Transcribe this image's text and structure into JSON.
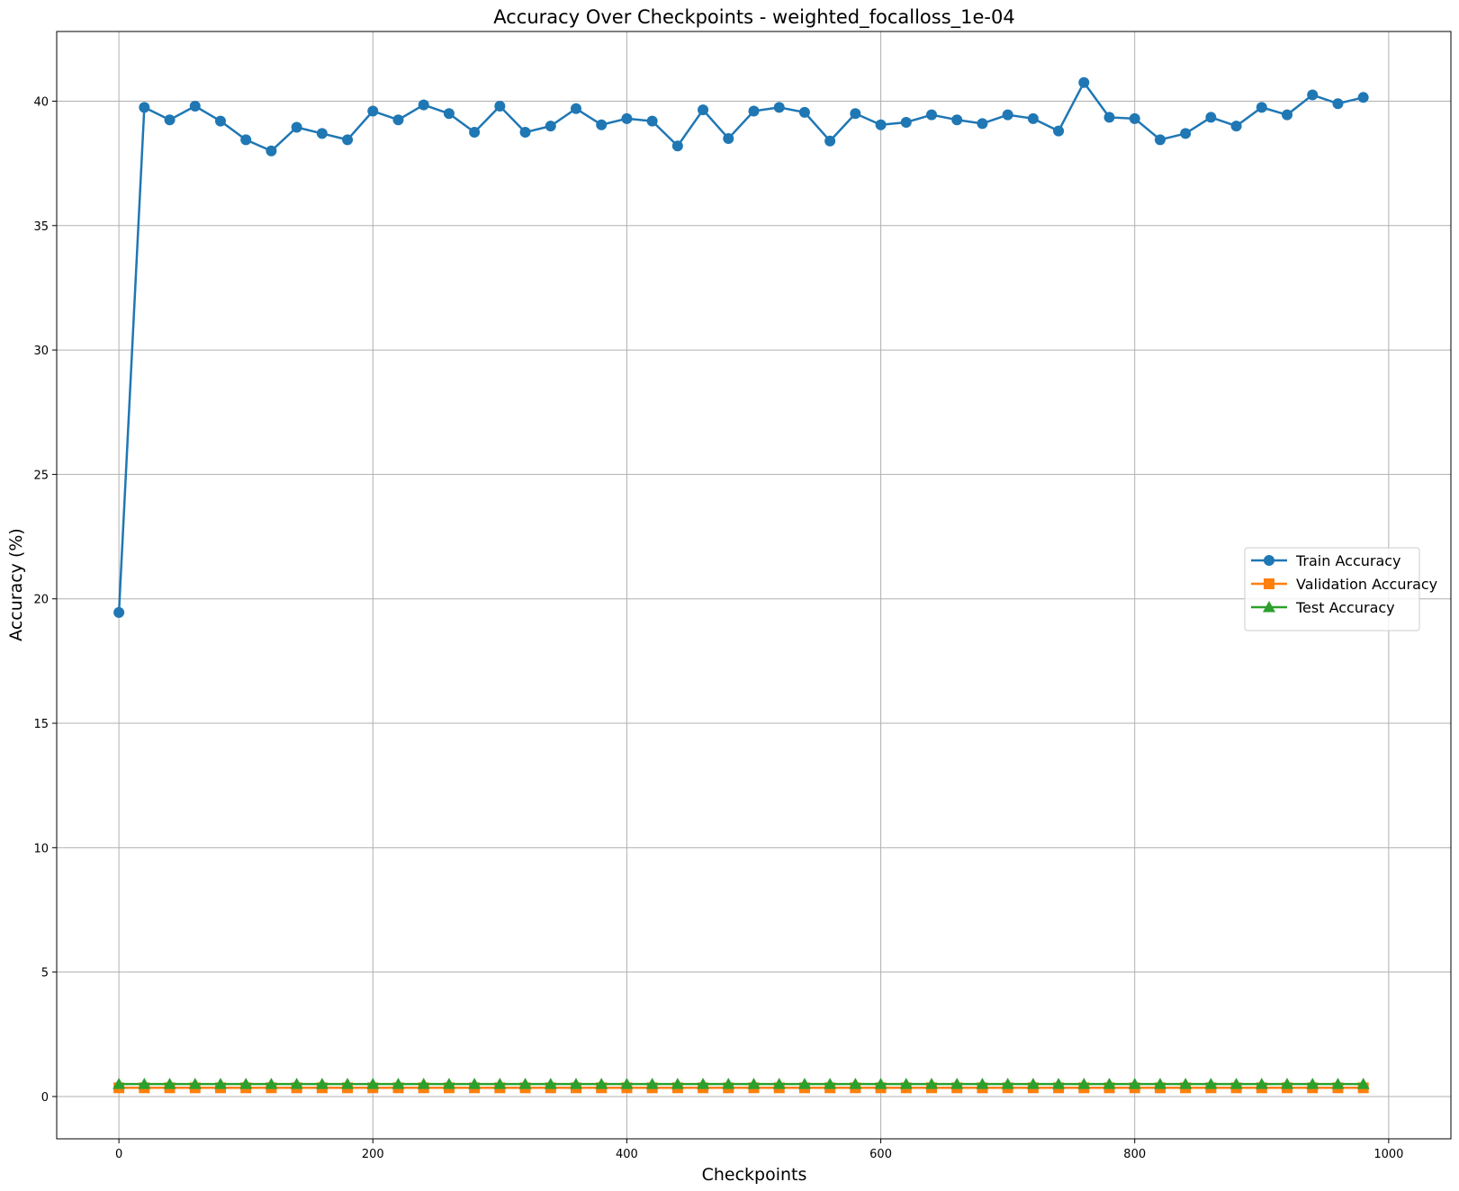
{
  "chart_data": {
    "type": "line",
    "title": "Accuracy Over Checkpoints - weighted_focalloss_1e-04",
    "xlabel": "Checkpoints",
    "ylabel": "Accuracy (%)",
    "xlim": [
      -49,
      1049
    ],
    "ylim": [
      -1.7,
      42.8
    ],
    "x_ticks": [
      0,
      200,
      400,
      600,
      800,
      1000
    ],
    "y_ticks": [
      0,
      5,
      10,
      15,
      20,
      25,
      30,
      35,
      40
    ],
    "grid": true,
    "legend_position": "center-right",
    "x": [
      0,
      20,
      40,
      60,
      80,
      100,
      120,
      140,
      160,
      180,
      200,
      220,
      240,
      260,
      280,
      300,
      320,
      340,
      360,
      380,
      400,
      420,
      440,
      460,
      480,
      500,
      520,
      540,
      560,
      580,
      600,
      620,
      640,
      660,
      680,
      700,
      720,
      740,
      760,
      780,
      800,
      820,
      840,
      860,
      880,
      900,
      920,
      940,
      960,
      980
    ],
    "series": [
      {
        "name": "Train Accuracy",
        "color": "#1f77b4",
        "marker": "circle",
        "values": [
          19.45,
          39.75,
          39.25,
          39.8,
          39.2,
          38.45,
          38.0,
          38.95,
          38.7,
          38.45,
          39.6,
          39.25,
          39.85,
          39.5,
          38.75,
          39.8,
          38.75,
          39.0,
          39.7,
          39.05,
          39.3,
          39.2,
          38.2,
          39.65,
          38.5,
          39.6,
          39.75,
          39.55,
          38.4,
          39.5,
          39.05,
          39.15,
          39.45,
          39.25,
          39.1,
          39.45,
          39.3,
          38.8,
          40.75,
          39.35,
          39.3,
          38.45,
          38.7,
          39.35,
          39.0,
          39.75,
          39.45,
          40.25,
          39.9,
          40.15
        ]
      },
      {
        "name": "Validation Accuracy",
        "color": "#ff7f0e",
        "marker": "square",
        "values": [
          0.35,
          0.35,
          0.35,
          0.35,
          0.35,
          0.35,
          0.35,
          0.35,
          0.35,
          0.35,
          0.35,
          0.35,
          0.35,
          0.35,
          0.35,
          0.35,
          0.35,
          0.35,
          0.35,
          0.35,
          0.35,
          0.35,
          0.35,
          0.35,
          0.35,
          0.35,
          0.35,
          0.35,
          0.35,
          0.35,
          0.35,
          0.35,
          0.35,
          0.35,
          0.35,
          0.35,
          0.35,
          0.35,
          0.35,
          0.35,
          0.35,
          0.35,
          0.35,
          0.35,
          0.35,
          0.35,
          0.35,
          0.35,
          0.35,
          0.35
        ]
      },
      {
        "name": "Test Accuracy",
        "color": "#2ca02c",
        "marker": "triangle",
        "values": [
          0.5,
          0.5,
          0.5,
          0.5,
          0.5,
          0.5,
          0.5,
          0.5,
          0.5,
          0.5,
          0.5,
          0.5,
          0.5,
          0.5,
          0.5,
          0.5,
          0.5,
          0.5,
          0.5,
          0.5,
          0.5,
          0.5,
          0.5,
          0.5,
          0.5,
          0.5,
          0.5,
          0.5,
          0.5,
          0.5,
          0.5,
          0.5,
          0.5,
          0.5,
          0.5,
          0.5,
          0.5,
          0.5,
          0.5,
          0.5,
          0.5,
          0.5,
          0.5,
          0.5,
          0.5,
          0.5,
          0.5,
          0.5,
          0.5,
          0.5
        ]
      }
    ]
  }
}
